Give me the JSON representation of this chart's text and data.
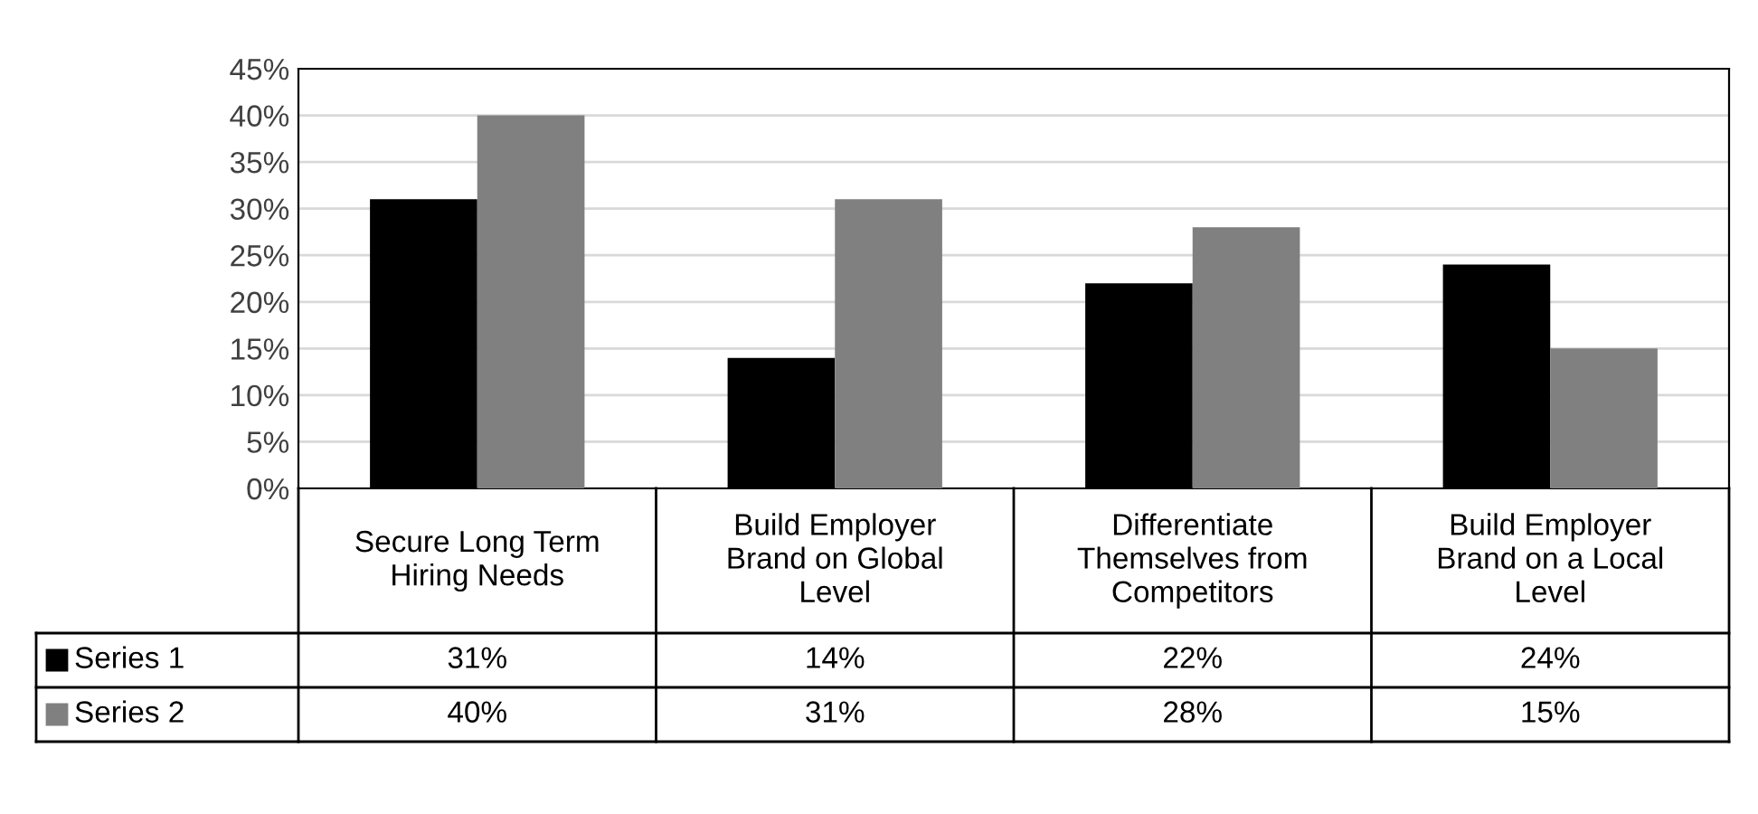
{
  "chart_data": {
    "type": "bar",
    "categories": [
      "Secure Long Term Hiring Needs",
      "Build Employer Brand on Global Level",
      "Differentiate Themselves from Competitors",
      "Build Employer Brand on a Local Level"
    ],
    "series": [
      {
        "name": "Series 1",
        "color": "#000000",
        "values": [
          31,
          14,
          22,
          24
        ],
        "value_labels": [
          "31%",
          "14%",
          "22%",
          "24%"
        ]
      },
      {
        "name": "Series 2",
        "color": "#808080",
        "values": [
          40,
          31,
          28,
          15
        ],
        "value_labels": [
          "40%",
          "31%",
          "28%",
          "15%"
        ]
      }
    ],
    "ylim": [
      0,
      45
    ],
    "yticks": [
      {
        "value": 0,
        "label": "0%"
      },
      {
        "value": 5,
        "label": "5%"
      },
      {
        "value": 10,
        "label": "10%"
      },
      {
        "value": 15,
        "label": "15%"
      },
      {
        "value": 20,
        "label": "20%"
      },
      {
        "value": 25,
        "label": "25%"
      },
      {
        "value": 30,
        "label": "30%"
      },
      {
        "value": 35,
        "label": "35%"
      },
      {
        "value": 40,
        "label": "40%"
      },
      {
        "value": 45,
        "label": "45%"
      }
    ],
    "grid": "y",
    "legend": "bottom"
  }
}
